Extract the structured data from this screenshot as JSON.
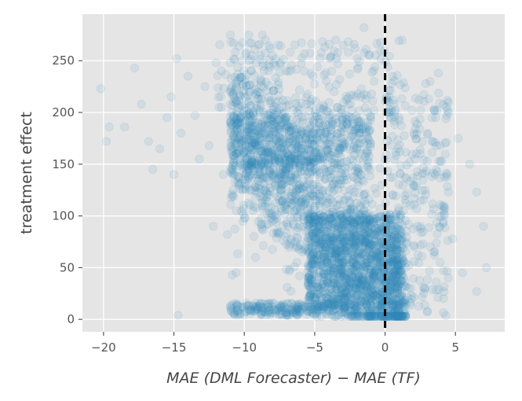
{
  "chart_data": {
    "type": "scatter",
    "title": "",
    "xlabel": "MAE (DML Forecaster) − MAE (TF)",
    "ylabel": "treatment effect",
    "xlim": [
      -21.5,
      8.5
    ],
    "ylim": [
      -12,
      295
    ],
    "xticks": [
      -20,
      -15,
      -10,
      -5,
      0,
      5
    ],
    "xtick_labels": [
      "−20",
      "−15",
      "−10",
      "−5",
      "0",
      "5"
    ],
    "yticks": [
      0,
      50,
      100,
      150,
      200,
      250
    ],
    "ytick_labels": [
      "0",
      "50",
      "100",
      "150",
      "200",
      "250"
    ],
    "grid": true,
    "reference_line": {
      "x": 0,
      "style": "dashed",
      "color": "#000000"
    },
    "point_color": "#348ABD",
    "point_alpha": 0.1,
    "background_color": "#E5E5E5",
    "series": [
      {
        "points": [
          [
            -20.2,
            223
          ],
          [
            -19.6,
            186
          ],
          [
            -19.8,
            172
          ],
          [
            -18.5,
            186
          ],
          [
            -17.8,
            243
          ],
          [
            -17.3,
            208
          ],
          [
            -16.8,
            172
          ],
          [
            -16.5,
            145
          ],
          [
            -16.0,
            165
          ],
          [
            -15.5,
            195
          ],
          [
            -15.2,
            215
          ],
          [
            -15.0,
            140
          ],
          [
            -14.8,
            252
          ],
          [
            -14.5,
            180
          ],
          [
            -14.0,
            235
          ],
          [
            -13.5,
            197
          ],
          [
            -13.2,
            155
          ],
          [
            -12.8,
            225
          ],
          [
            -12.5,
            168
          ],
          [
            -12.0,
            248
          ],
          [
            -11.8,
            205
          ],
          [
            -11.5,
            140
          ],
          [
            -11.0,
            190
          ],
          [
            -10.8,
            125
          ],
          [
            -10.5,
            230
          ],
          [
            -10.2,
            170
          ],
          [
            -14.7,
            4
          ],
          [
            -12.2,
            90
          ],
          [
            -11.2,
            82
          ],
          [
            -9.5,
            240
          ],
          [
            -9.0,
            265
          ],
          [
            -8.5,
            270
          ],
          [
            -8.0,
            255
          ],
          [
            -3.5,
            270
          ],
          [
            -2.2,
            266
          ],
          [
            -1.5,
            282
          ],
          [
            1.2,
            270
          ],
          [
            3.2,
            230
          ],
          [
            3.8,
            238
          ],
          [
            4.5,
            210
          ],
          [
            5.2,
            175
          ],
          [
            6.0,
            150
          ],
          [
            6.5,
            123
          ],
          [
            7.0,
            90
          ],
          [
            7.2,
            50
          ],
          [
            6.5,
            27
          ],
          [
            4.5,
            123
          ],
          [
            4.0,
            100
          ],
          [
            3.5,
            62
          ],
          [
            5.5,
            45
          ],
          [
            2.5,
            160
          ],
          [
            2.0,
            130
          ],
          [
            1.5,
            85
          ],
          [
            2.8,
            30
          ],
          [
            3.0,
            8
          ],
          [
            1.0,
            195
          ],
          [
            4.8,
            78
          ],
          [
            -9.5,
            8
          ],
          [
            -8.8,
            12
          ],
          [
            -7.5,
            8
          ],
          [
            -6.5,
            8
          ],
          [
            -5.5,
            8
          ],
          [
            -4.0,
            8
          ],
          [
            -2.5,
            8
          ],
          [
            -10.0,
            12
          ],
          [
            -9.2,
            60
          ]
        ]
      }
    ]
  }
}
